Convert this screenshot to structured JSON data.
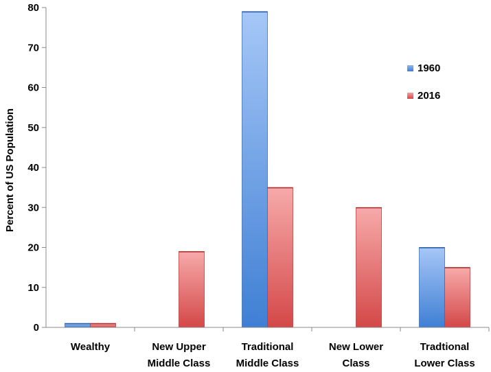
{
  "chart_data": {
    "type": "bar",
    "title": "",
    "xlabel": "",
    "ylabel": "Percent of US Population",
    "ylim": [
      0,
      80
    ],
    "yticks": [
      0,
      10,
      20,
      30,
      40,
      50,
      60,
      70,
      80
    ],
    "grid": false,
    "legend_position": "top-right",
    "categories": [
      [
        "Wealthy"
      ],
      [
        "New Upper",
        "Middle Class"
      ],
      [
        "Traditional",
        "Middle Class"
      ],
      [
        "New Lower",
        "Class"
      ],
      [
        "Tradtional",
        "Lower Class"
      ]
    ],
    "series": [
      {
        "name": "1960",
        "color": "#5b8fd8",
        "values": [
          1,
          0,
          79,
          0,
          20
        ]
      },
      {
        "name": "2016",
        "color": "#e05a5a",
        "values": [
          1,
          19,
          35,
          30,
          15
        ]
      }
    ]
  }
}
